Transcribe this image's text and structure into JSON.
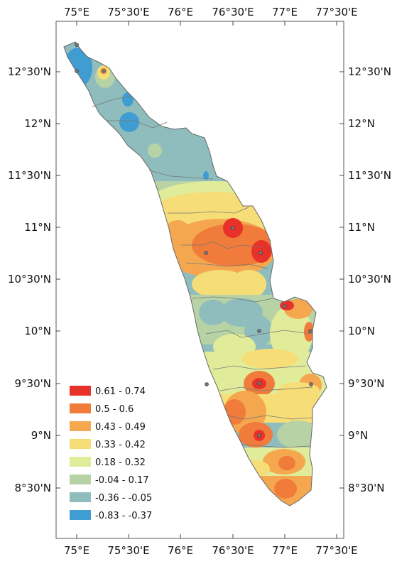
{
  "map": {
    "top_axis_labels": [
      "75°E",
      "75°30'E",
      "76°E",
      "76°30'E",
      "77°E",
      "77°30'E"
    ],
    "bottom_axis_labels": [
      "75°E",
      "75°30'E",
      "76°E",
      "76°30'E",
      "77°E",
      "77°30'E"
    ],
    "left_axis_labels": [
      "12°30'N",
      "12°N",
      "11°30'N",
      "11°N",
      "10°30'N",
      "10°N",
      "9°30'N",
      "9°N",
      "8°30'N"
    ],
    "right_axis_labels": [
      "12°30'N",
      "12°N",
      "11°30'N",
      "11°N",
      "10°30'N",
      "10°N",
      "9°30'N",
      "9°N",
      "8°30'N"
    ],
    "legend": [
      {
        "label": "0.61 - 0.74",
        "color": "#e8312a"
      },
      {
        "label": "0.5 - 0.6",
        "color": "#f07b3a"
      },
      {
        "label": "0.43 - 0.49",
        "color": "#f5a74f"
      },
      {
        "label": "0.33 - 0.42",
        "color": "#f6dd78"
      },
      {
        "label": "0.18 - 0.32",
        "color": "#e0ec9a"
      },
      {
        "label": "-0.04 - 0.17",
        "color": "#b7d3a6"
      },
      {
        "label": "-0.36 - -0.05",
        "color": "#8fbcbd"
      },
      {
        "label": "-0.83 - -0.37",
        "color": "#3f9dd1"
      }
    ]
  }
}
